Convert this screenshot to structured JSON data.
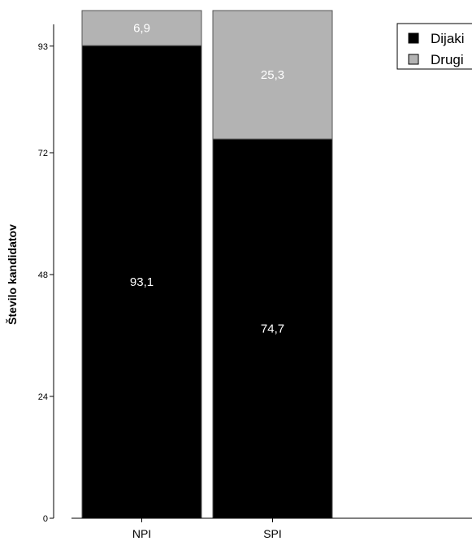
{
  "chart_data": {
    "type": "bar",
    "stacked": true,
    "categories": [
      "NPI",
      "SPI"
    ],
    "series": [
      {
        "name": "Dijaki",
        "values": [
          93.1,
          74.7
        ],
        "labels": [
          "93,1",
          "74,7"
        ],
        "color": "#000000"
      },
      {
        "name": "Drugi",
        "values": [
          6.9,
          25.3
        ],
        "labels": [
          "6,9",
          "25,3"
        ],
        "color": "#b3b3b3"
      }
    ],
    "ylabel": "Število kandidatov",
    "yticks": [
      0,
      24,
      48,
      72,
      93
    ],
    "ylim": [
      0,
      100
    ],
    "legend": "top-right",
    "grid": false
  }
}
